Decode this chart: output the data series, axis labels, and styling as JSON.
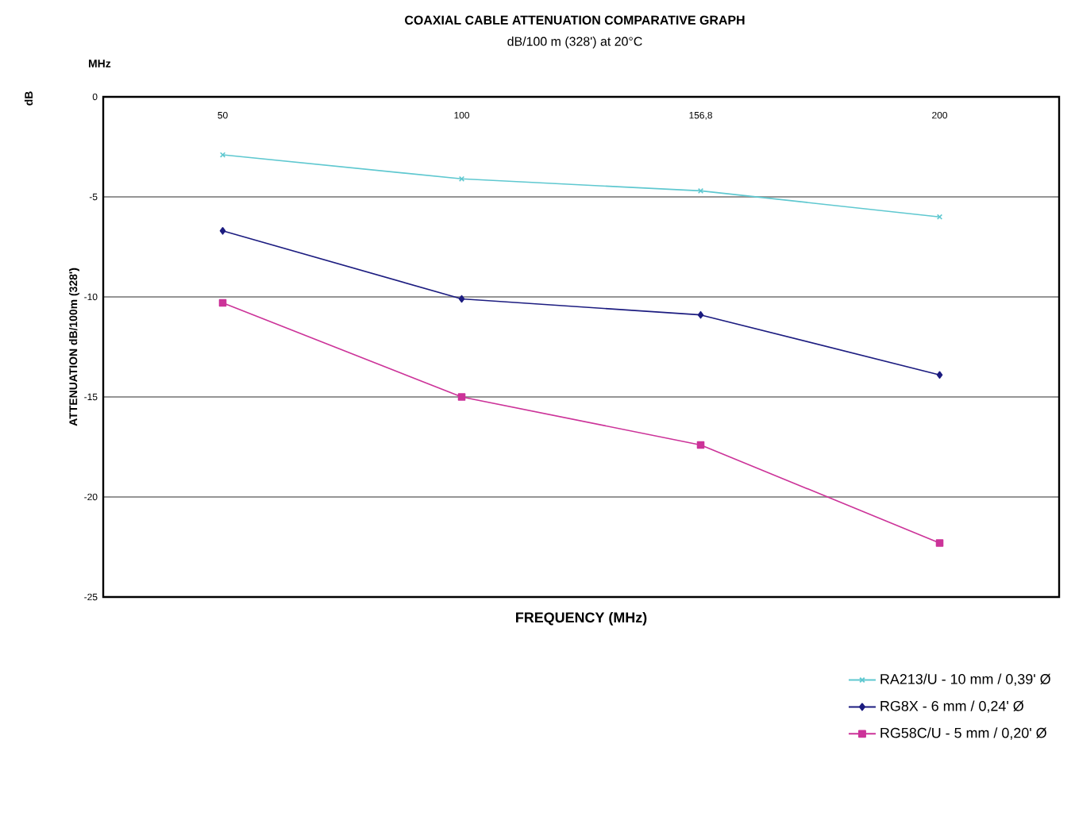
{
  "chart_data": {
    "type": "line",
    "title": "COAXIAL CABLE ATTENUATION COMPARATIVE GRAPH",
    "subtitle": "dB/100 m (328') at 20°C",
    "xlabel": "FREQUENCY (MHz)",
    "ylabel": "ATTENUATION dB/100m (328')",
    "annotations": [
      "MHz",
      "dB"
    ],
    "categories": [
      "50",
      "100",
      "156,8",
      "200"
    ],
    "ylim": [
      -25,
      0
    ],
    "yticks": [
      -25,
      -20,
      -15,
      -10,
      -5,
      0
    ],
    "grid": "y",
    "legend": "bottom right",
    "series": [
      {
        "name": "RA213/U - 10 mm / 0,39' Ø",
        "color": "#5fc8d0",
        "marker": "cross",
        "values": [
          -2.9,
          -4.1,
          -4.7,
          -6.0
        ]
      },
      {
        "name": "RG8X - 6 mm / 0,24' Ø",
        "color": "#1c1c80",
        "marker": "diamond",
        "values": [
          -6.7,
          -10.1,
          -10.9,
          -13.9
        ]
      },
      {
        "name": "RG58C/U - 5 mm / 0,20' Ø",
        "color": "#cc3399",
        "marker": "square",
        "values": [
          -10.3,
          -15.0,
          -17.4,
          -22.3
        ]
      }
    ]
  }
}
